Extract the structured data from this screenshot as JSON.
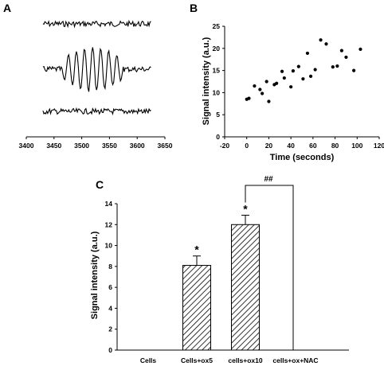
{
  "panels": {
    "A": {
      "label": "A"
    },
    "B": {
      "label": "B"
    },
    "C": {
      "label": "C"
    }
  },
  "chart_data": [
    {
      "panel": "A",
      "type": "line",
      "xticks": [
        "3400",
        "3450",
        "3500",
        "3550",
        "3600",
        "3650"
      ],
      "xlim": [
        3400,
        3650
      ],
      "traces": 3,
      "spectrum_range": [
        3430,
        3625
      ],
      "signal_range": [
        3465,
        3575
      ],
      "grid": false
    },
    {
      "panel": "B",
      "type": "scatter",
      "xlabel": "Time (seconds)",
      "ylabel": "Signal intensity (a.u.)",
      "xlim": [
        -20,
        120
      ],
      "ylim": [
        0,
        25
      ],
      "xticks": [
        "-20",
        "0",
        "20",
        "40",
        "60",
        "80",
        "100",
        "120"
      ],
      "yticks": [
        "0",
        "5",
        "10",
        "15",
        "20",
        "25"
      ],
      "points": [
        {
          "x": 0,
          "y": 8.5
        },
        {
          "x": 2,
          "y": 8.7
        },
        {
          "x": 7,
          "y": 11.5
        },
        {
          "x": 12,
          "y": 10.7
        },
        {
          "x": 14,
          "y": 9.8
        },
        {
          "x": 18,
          "y": 12.5
        },
        {
          "x": 20,
          "y": 8.0
        },
        {
          "x": 25,
          "y": 11.8
        },
        {
          "x": 27,
          "y": 12.1
        },
        {
          "x": 32,
          "y": 14.8
        },
        {
          "x": 34,
          "y": 13.3
        },
        {
          "x": 40,
          "y": 11.3
        },
        {
          "x": 42,
          "y": 14.9
        },
        {
          "x": 47,
          "y": 15.9
        },
        {
          "x": 51,
          "y": 13.1
        },
        {
          "x": 55,
          "y": 18.9
        },
        {
          "x": 58,
          "y": 13.7
        },
        {
          "x": 62,
          "y": 15.2
        },
        {
          "x": 67,
          "y": 21.9
        },
        {
          "x": 72,
          "y": 21.0
        },
        {
          "x": 78,
          "y": 15.8
        },
        {
          "x": 82,
          "y": 16.0
        },
        {
          "x": 86,
          "y": 19.5
        },
        {
          "x": 90,
          "y": 18.0
        },
        {
          "x": 97,
          "y": 15.0
        },
        {
          "x": 103,
          "y": 19.8
        }
      ],
      "grid": false
    },
    {
      "panel": "C",
      "type": "bar",
      "ylabel": "Signal intensity (a.u.)",
      "ylim": [
        0,
        14
      ],
      "yticks": [
        "0",
        "2",
        "4",
        "6",
        "8",
        "10",
        "12",
        "14"
      ],
      "categories": [
        "Cells",
        "Cells+ox5",
        "cells+ox10",
        "cells+ox+NAC"
      ],
      "values": [
        0,
        8.1,
        12.0,
        0
      ],
      "errors": [
        0,
        0.9,
        0.9,
        0
      ],
      "markers": [
        "",
        "*",
        "*",
        ""
      ],
      "bracket": {
        "from": "cells+ox10",
        "to": "cells+ox+NAC",
        "label": "##"
      },
      "grid": false
    }
  ]
}
